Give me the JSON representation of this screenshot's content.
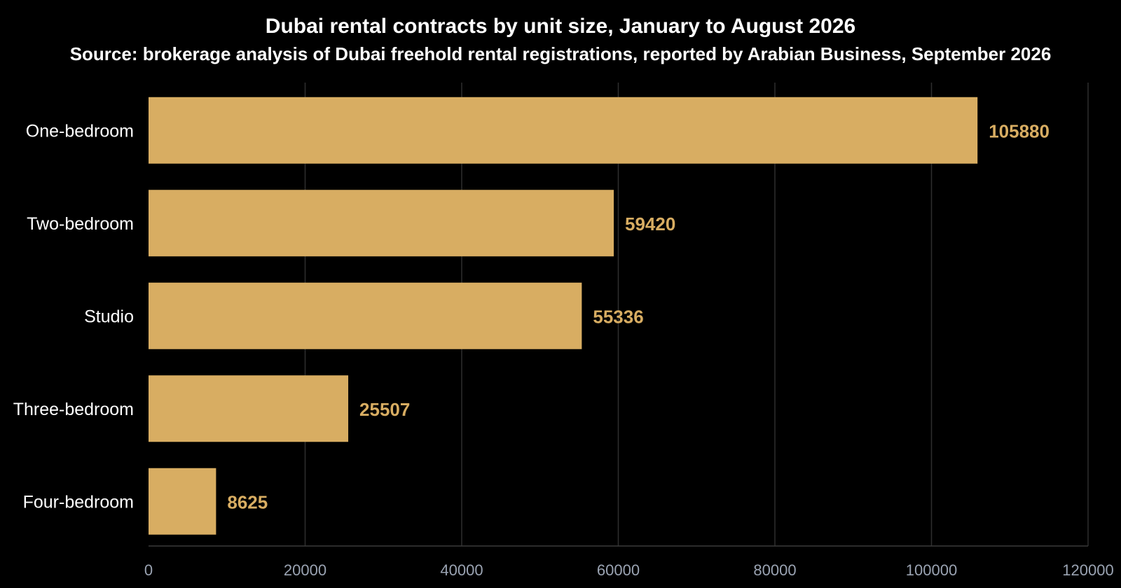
{
  "chart_data": {
    "type": "bar",
    "orientation": "horizontal",
    "title": "Dubai rental contracts by unit size, January to August 2026",
    "subtitle": "Source: brokerage analysis of Dubai freehold rental registrations, reported by Arabian Business, September 2026",
    "categories": [
      "One-bedroom",
      "Two-bedroom",
      "Studio",
      "Three-bedroom",
      "Four-bedroom"
    ],
    "values": [
      105880,
      59420,
      55336,
      25507,
      8625
    ],
    "data_labels": [
      "105880",
      "59420",
      "55336",
      "25507",
      "8625"
    ],
    "xlim": [
      0,
      120000
    ],
    "x_ticks": [
      "0",
      "20000",
      "40000",
      "60000",
      "80000",
      "100000",
      "120000"
    ],
    "xlabel": "",
    "ylabel": "",
    "grid": true,
    "colors": {
      "background": "#000000",
      "bar": "#d8ad62",
      "grid": "#2e2e2e",
      "axis": "#3a3a3a",
      "tick_text": "#9aa3b2",
      "category_text": "#ffffff",
      "value_text": "#d8ad62"
    }
  }
}
